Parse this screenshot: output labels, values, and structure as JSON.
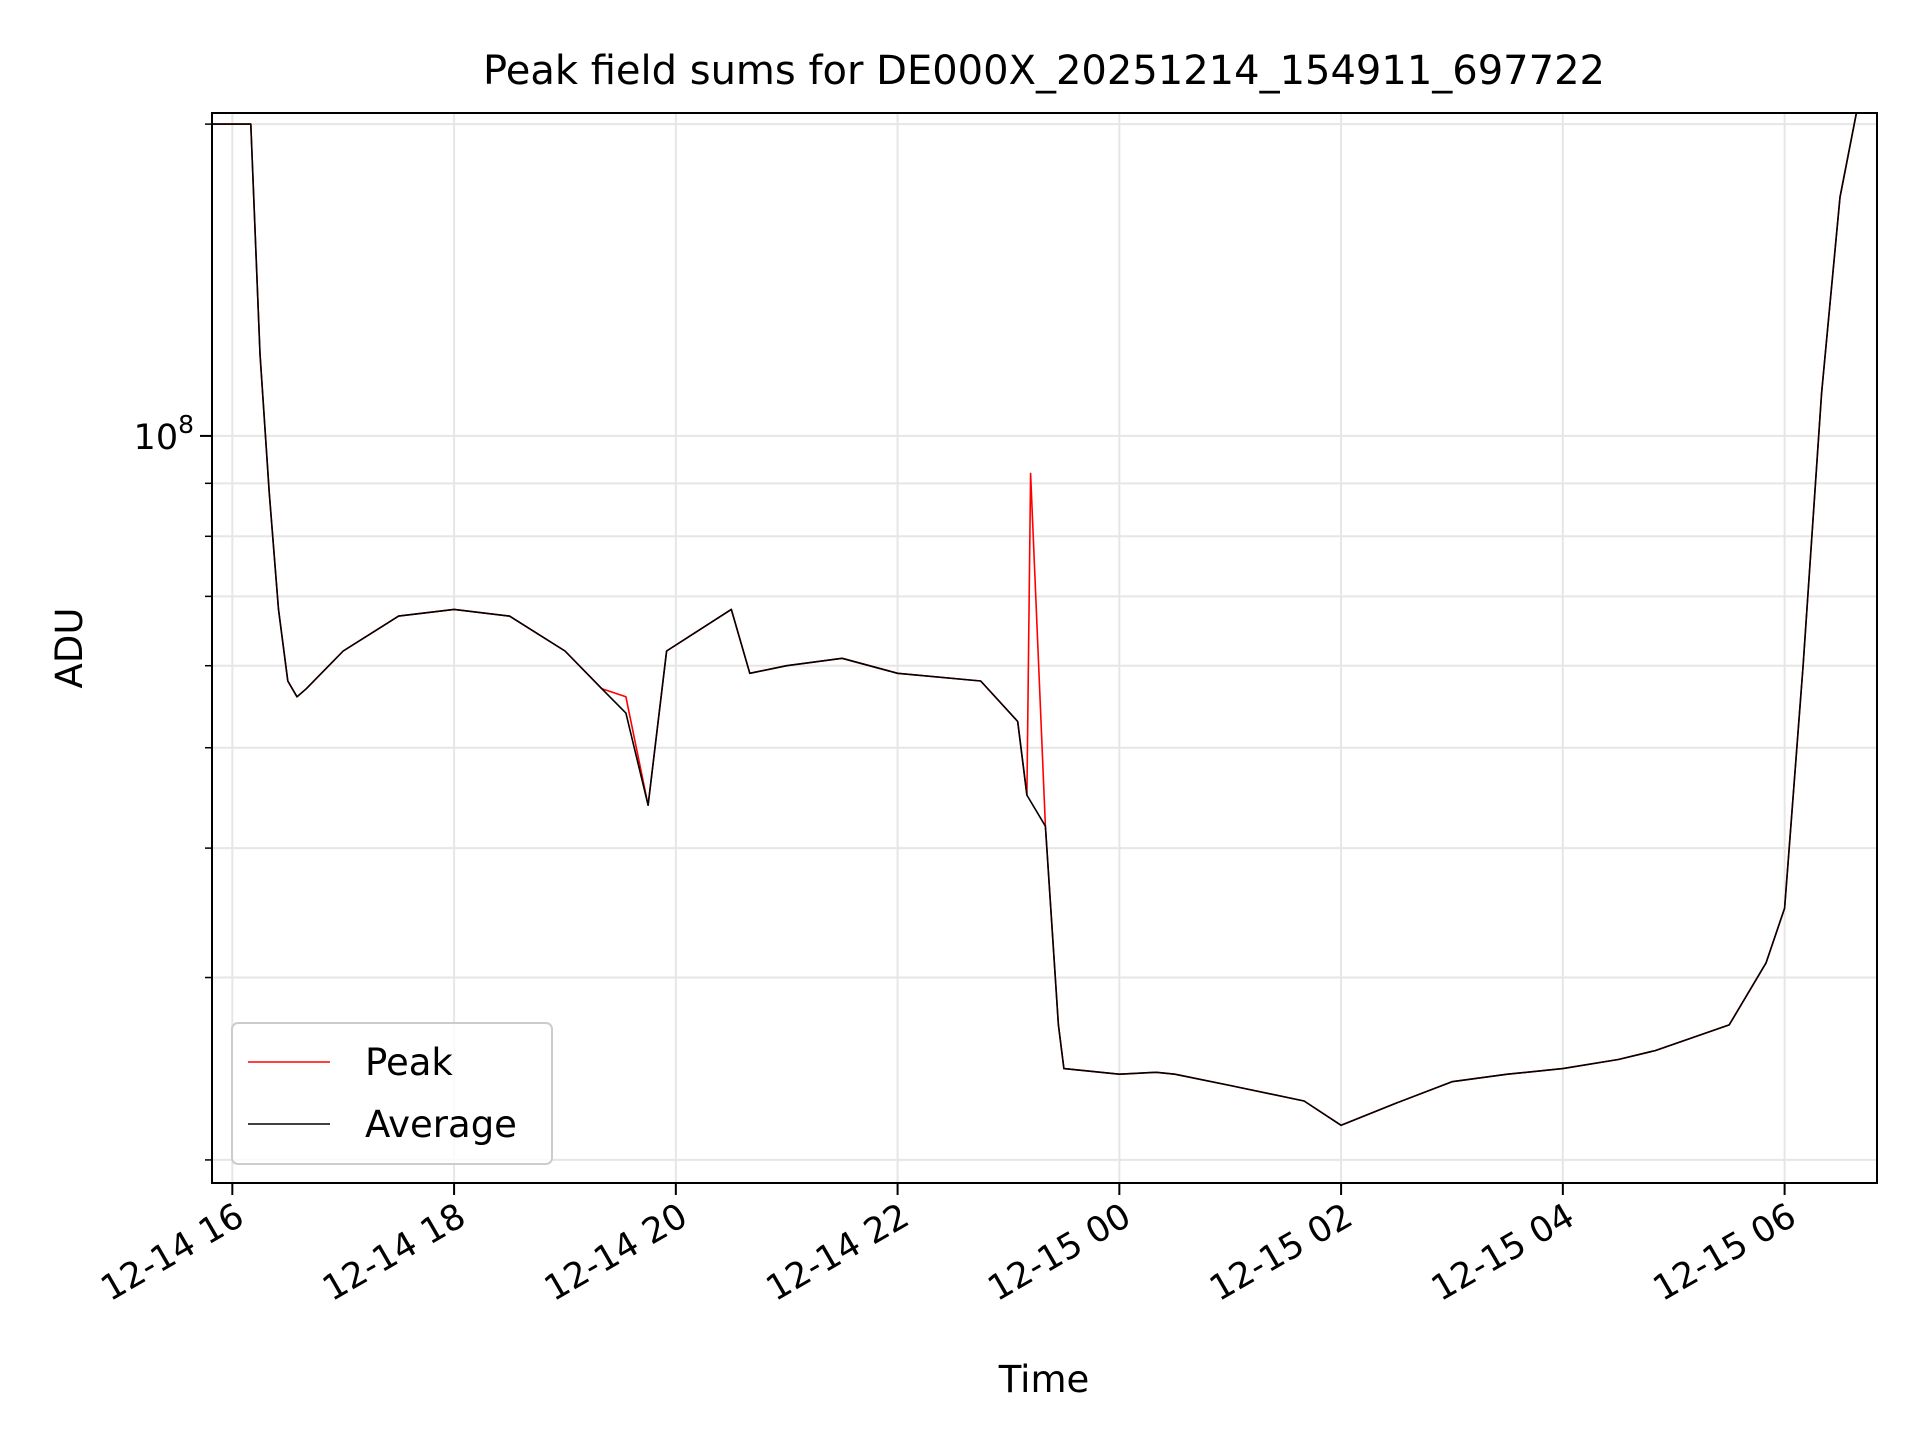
{
  "chart_data": {
    "type": "line",
    "title": "Peak field sums for DE000X_20251214_154911_697722",
    "xlabel": "Time",
    "ylabel": "ADU",
    "yscale": "log",
    "ylim": [
      19000000,
      205000000
    ],
    "xlim": [
      "2025-12-14 15:49",
      "2025-12-15 06:50"
    ],
    "xticks": [
      "2025-12-14 16:00",
      "2025-12-14 18:00",
      "2025-12-14 20:00",
      "2025-12-14 22:00",
      "2025-12-15 00:00",
      "2025-12-15 02:00",
      "2025-12-15 04:00",
      "2025-12-15 06:00"
    ],
    "xtick_labels": [
      "12-14 16",
      "12-14 18",
      "12-14 20",
      "12-14 22",
      "12-15 00",
      "12-15 02",
      "12-15 04",
      "12-15 06"
    ],
    "ytick_label": {
      "base": "10",
      "exp": "8",
      "value": 100000000
    },
    "grid": true,
    "legend": "lower-left",
    "series": [
      {
        "name": "Peak",
        "color": "#ff0000",
        "x": [
          "2025-12-14 15:49",
          "2025-12-14 16:10",
          "2025-12-14 16:15",
          "2025-12-14 16:20",
          "2025-12-14 16:25",
          "2025-12-14 16:30",
          "2025-12-14 16:35",
          "2025-12-14 16:40",
          "2025-12-14 17:00",
          "2025-12-14 17:30",
          "2025-12-14 18:00",
          "2025-12-14 18:30",
          "2025-12-14 19:00",
          "2025-12-14 19:20",
          "2025-12-14 19:33",
          "2025-12-14 19:45",
          "2025-12-14 19:55",
          "2025-12-14 20:30",
          "2025-12-14 20:40",
          "2025-12-14 21:00",
          "2025-12-14 21:30",
          "2025-12-14 22:00",
          "2025-12-14 22:45",
          "2025-12-14 23:05",
          "2025-12-14 23:10",
          "2025-12-14 23:12",
          "2025-12-14 23:20",
          "2025-12-14 23:27",
          "2025-12-14 23:30",
          "2025-12-15 00:00",
          "2025-12-15 00:20",
          "2025-12-15 00:30",
          "2025-12-15 01:00",
          "2025-12-15 01:40",
          "2025-12-15 02:00",
          "2025-12-15 02:30",
          "2025-12-15 03:00",
          "2025-12-15 03:30",
          "2025-12-15 04:00",
          "2025-12-15 04:30",
          "2025-12-15 04:50",
          "2025-12-15 05:30",
          "2025-12-15 05:50",
          "2025-12-15 06:00",
          "2025-12-15 06:10",
          "2025-12-15 06:20",
          "2025-12-15 06:30",
          "2025-12-15 06:40"
        ],
        "y": [
          200000000,
          200000000,
          120000000,
          88000000,
          68000000,
          58000000,
          56000000,
          57000000,
          62000000,
          67000000,
          68000000,
          67000000,
          62000000,
          57000000,
          56000000,
          44000000,
          62000000,
          68000000,
          59000000,
          60000000,
          61000000,
          59000000,
          58000000,
          53000000,
          45000000,
          92000000,
          42000000,
          27000000,
          24500000,
          24200000,
          24300000,
          24200000,
          23600000,
          22800000,
          21600000,
          22700000,
          23800000,
          24200000,
          24500000,
          25000000,
          25500000,
          27000000,
          31000000,
          35000000,
          60000000,
          110000000,
          170000000,
          210000000
        ]
      },
      {
        "name": "Average",
        "color": "#000000",
        "x": [
          "2025-12-14 15:49",
          "2025-12-14 16:10",
          "2025-12-14 16:15",
          "2025-12-14 16:20",
          "2025-12-14 16:25",
          "2025-12-14 16:30",
          "2025-12-14 16:35",
          "2025-12-14 16:40",
          "2025-12-14 17:00",
          "2025-12-14 17:30",
          "2025-12-14 18:00",
          "2025-12-14 18:30",
          "2025-12-14 19:00",
          "2025-12-14 19:20",
          "2025-12-14 19:33",
          "2025-12-14 19:45",
          "2025-12-14 19:55",
          "2025-12-14 20:30",
          "2025-12-14 20:40",
          "2025-12-14 21:00",
          "2025-12-14 21:30",
          "2025-12-14 22:00",
          "2025-12-14 22:45",
          "2025-12-14 23:05",
          "2025-12-14 23:10",
          "2025-12-14 23:20",
          "2025-12-14 23:27",
          "2025-12-14 23:30",
          "2025-12-15 00:00",
          "2025-12-15 00:20",
          "2025-12-15 00:30",
          "2025-12-15 01:00",
          "2025-12-15 01:40",
          "2025-12-15 02:00",
          "2025-12-15 02:30",
          "2025-12-15 03:00",
          "2025-12-15 03:30",
          "2025-12-15 04:00",
          "2025-12-15 04:30",
          "2025-12-15 04:50",
          "2025-12-15 05:30",
          "2025-12-15 05:50",
          "2025-12-15 06:00",
          "2025-12-15 06:10",
          "2025-12-15 06:20",
          "2025-12-15 06:30",
          "2025-12-15 06:40"
        ],
        "y": [
          200000000,
          200000000,
          120000000,
          88000000,
          68000000,
          58000000,
          56000000,
          57000000,
          62000000,
          67000000,
          68000000,
          67000000,
          62000000,
          57000000,
          54000000,
          44000000,
          62000000,
          68000000,
          59000000,
          60000000,
          61000000,
          59000000,
          58000000,
          53000000,
          45000000,
          42000000,
          27000000,
          24500000,
          24200000,
          24300000,
          24200000,
          23600000,
          22800000,
          21600000,
          22700000,
          23800000,
          24200000,
          24500000,
          25000000,
          25500000,
          27000000,
          31000000,
          35000000,
          60000000,
          110000000,
          170000000,
          210000000
        ]
      }
    ]
  }
}
